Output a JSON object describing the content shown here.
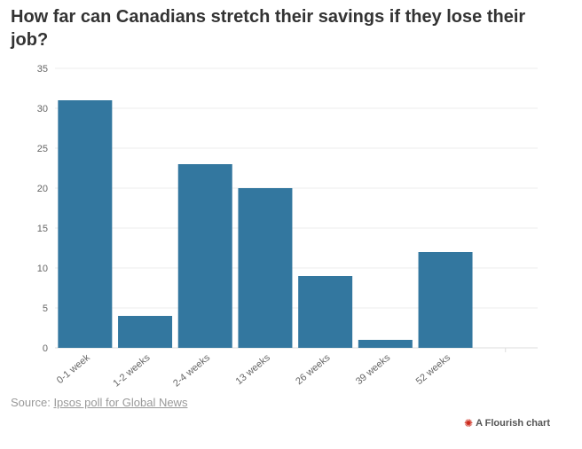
{
  "chart_data": {
    "type": "bar",
    "title": "How far can Canadians stretch their savings if they lose their job?",
    "categories": [
      "0-1 week",
      "1-2 weeks",
      "2-4 weeks",
      "13 weeks",
      "26 weeks",
      "39 weeks",
      "52 weeks"
    ],
    "values": [
      31,
      4,
      23,
      20,
      9,
      1,
      12
    ],
    "ylim": [
      0,
      35
    ],
    "yticks": [
      0,
      5,
      10,
      15,
      20,
      25,
      30,
      35
    ],
    "xlabel": "",
    "ylabel": "",
    "grid": true,
    "bar_color": "#33779f"
  },
  "source": {
    "prefix": "Source:",
    "link_text": "Ipsos poll for Global News"
  },
  "credit": {
    "text": "A Flourish chart",
    "icon": "flourish-star-icon"
  }
}
